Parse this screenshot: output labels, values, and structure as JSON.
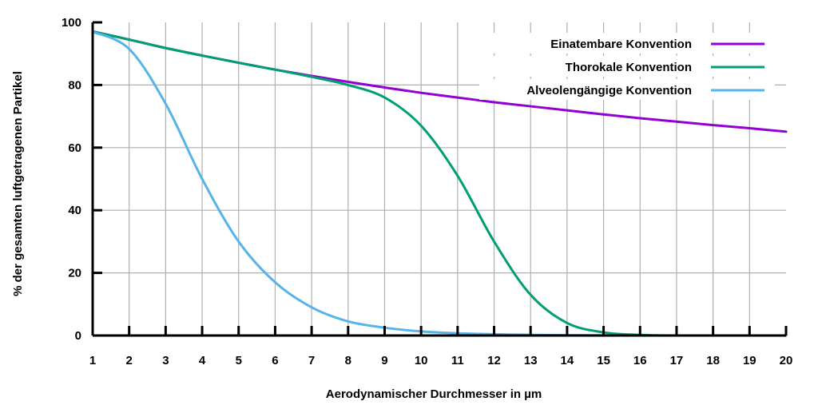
{
  "chart_data": {
    "type": "line",
    "title": "",
    "xlabel": "Aerodynamischer Durchmesser in µm",
    "ylabel": "% der gesamten luftgetragenen Partikel",
    "xlim": [
      1,
      20
    ],
    "ylim": [
      0,
      100
    ],
    "x_ticks": [
      "1",
      "2",
      "3",
      "4",
      "5",
      "6",
      "7",
      "8",
      "9",
      "10",
      "11",
      "12",
      "13",
      "14",
      "15",
      "16",
      "17",
      "18",
      "19",
      "20"
    ],
    "y_ticks": [
      "0",
      "20",
      "40",
      "60",
      "80",
      "100"
    ],
    "grid": true,
    "legend_position": "top-right",
    "x": [
      1,
      2,
      3,
      4,
      5,
      6,
      7,
      8,
      9,
      10,
      11,
      12,
      13,
      14,
      15,
      16,
      17,
      18,
      19,
      20
    ],
    "series": [
      {
        "name": "Einatembare Konvention",
        "color": "#9400d3",
        "values": [
          97.1,
          94.5,
          91.8,
          89.4,
          87.1,
          84.9,
          82.9,
          81.0,
          79.2,
          77.5,
          76.0,
          74.5,
          73.2,
          71.9,
          70.6,
          69.4,
          68.3,
          67.2,
          66.2,
          65.1
        ]
      },
      {
        "name": "Thorokale Konvention",
        "color": "#009e73",
        "values": [
          97.1,
          94.5,
          91.8,
          89.4,
          87.1,
          84.9,
          82.6,
          80.0,
          76.0,
          67.0,
          51.0,
          30.0,
          13.0,
          4.0,
          1.0,
          0.2,
          0.0,
          0.0,
          0.0,
          0.0
        ]
      },
      {
        "name": "Alveolengängige Konvention",
        "color": "#56b4e9",
        "values": [
          97.0,
          91.5,
          74.0,
          50.0,
          30.0,
          17.0,
          9.0,
          4.5,
          2.5,
          1.3,
          0.7,
          0.4,
          0.2,
          0.1,
          0.05,
          0.0,
          0.0,
          0.0,
          0.0,
          0.0
        ]
      }
    ]
  }
}
